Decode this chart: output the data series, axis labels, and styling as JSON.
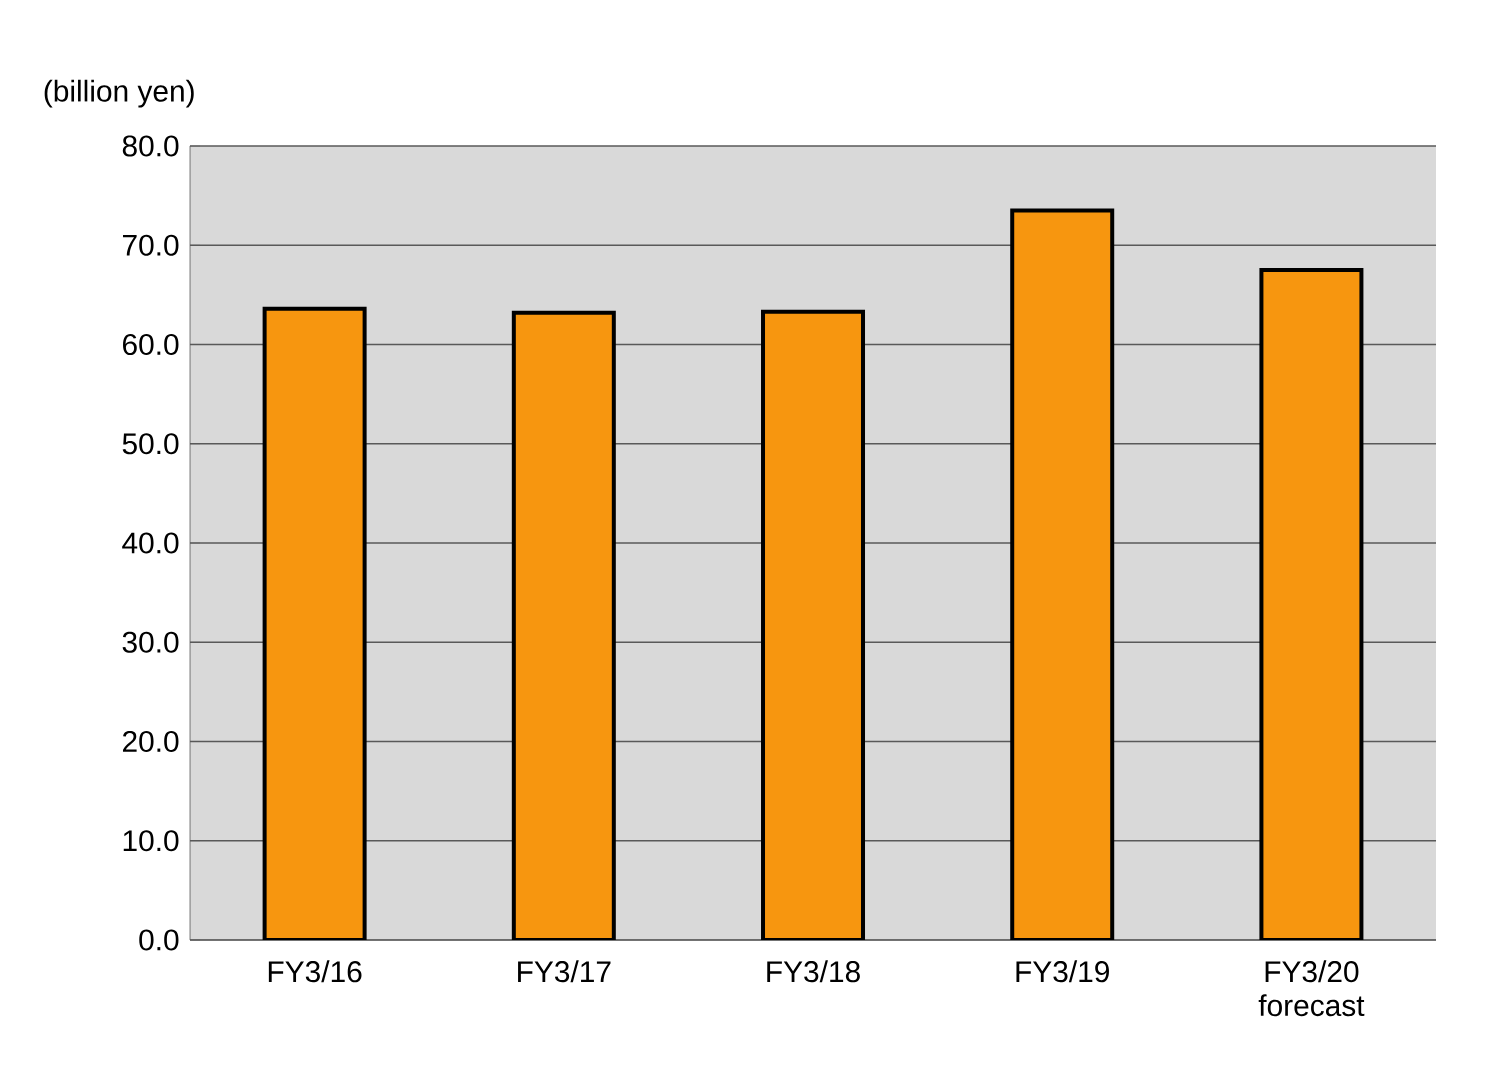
{
  "chart_data": {
    "type": "bar",
    "ylabel": "(billion yen)",
    "categories": [
      "FY3/16",
      "FY3/17",
      "FY3/18",
      "FY3/19",
      "FY3/20 forecast"
    ],
    "values": [
      63.6,
      63.2,
      63.3,
      73.5,
      67.5
    ],
    "color": "#f7960f",
    "ylim": [
      0,
      80
    ],
    "yticks": [
      {
        "value": 0,
        "label": "0.0"
      },
      {
        "value": 10,
        "label": "10.0"
      },
      {
        "value": 20,
        "label": "20.0"
      },
      {
        "value": 30,
        "label": "30.0"
      },
      {
        "value": 40,
        "label": "40.0"
      },
      {
        "value": 50,
        "label": "50.0"
      },
      {
        "value": 60,
        "label": "60.0"
      },
      {
        "value": 70,
        "label": "70.0"
      },
      {
        "value": 80,
        "label": "80.0"
      }
    ],
    "grid": "y"
  }
}
